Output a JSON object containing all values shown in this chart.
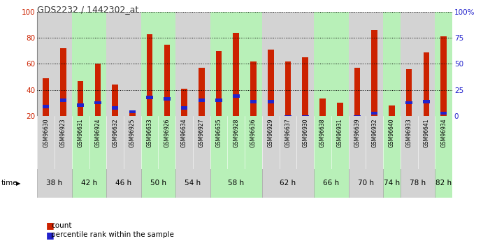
{
  "title": "GDS2232 / 1442302_at",
  "samples": [
    "GSM96630",
    "GSM96923",
    "GSM96631",
    "GSM96924",
    "GSM96632",
    "GSM96925",
    "GSM96633",
    "GSM96926",
    "GSM96634",
    "GSM96927",
    "GSM96635",
    "GSM96928",
    "GSM96636",
    "GSM96929",
    "GSM96637",
    "GSM96930",
    "GSM96638",
    "GSM96931",
    "GSM96639",
    "GSM96932",
    "GSM96640",
    "GSM96933",
    "GSM96641",
    "GSM96934"
  ],
  "count_values": [
    49,
    72,
    47,
    60,
    44,
    23,
    83,
    75,
    41,
    57,
    70,
    84,
    62,
    71,
    62,
    65,
    33,
    30,
    57,
    86,
    28,
    56,
    69,
    81
  ],
  "percentile_values": [
    27,
    32,
    28,
    30,
    26,
    23,
    34,
    33,
    26,
    32,
    32,
    35,
    31,
    31,
    19,
    19,
    18,
    17,
    19,
    22,
    14,
    30,
    31,
    22
  ],
  "time_groups": [
    {
      "label": "38 h",
      "start": 0,
      "end": 2,
      "color": "#d3d3d3"
    },
    {
      "label": "42 h",
      "start": 2,
      "end": 4,
      "color": "#b8f0b8"
    },
    {
      "label": "46 h",
      "start": 4,
      "end": 6,
      "color": "#d3d3d3"
    },
    {
      "label": "50 h",
      "start": 6,
      "end": 8,
      "color": "#b8f0b8"
    },
    {
      "label": "54 h",
      "start": 8,
      "end": 10,
      "color": "#d3d3d3"
    },
    {
      "label": "58 h",
      "start": 10,
      "end": 13,
      "color": "#b8f0b8"
    },
    {
      "label": "62 h",
      "start": 13,
      "end": 16,
      "color": "#d3d3d3"
    },
    {
      "label": "66 h",
      "start": 16,
      "end": 18,
      "color": "#b8f0b8"
    },
    {
      "label": "70 h",
      "start": 18,
      "end": 20,
      "color": "#d3d3d3"
    },
    {
      "label": "74 h",
      "start": 20,
      "end": 21,
      "color": "#b8f0b8"
    },
    {
      "label": "78 h",
      "start": 21,
      "end": 23,
      "color": "#d3d3d3"
    },
    {
      "label": "82 h",
      "start": 23,
      "end": 24,
      "color": "#b8f0b8"
    }
  ],
  "bar_color": "#cc2200",
  "percentile_color": "#2222cc",
  "yticks_left": [
    20,
    40,
    60,
    80,
    100
  ],
  "yticks_right_labels": [
    "0",
    "25",
    "50",
    "75",
    "100%"
  ],
  "yticks_right_vals": [
    20,
    40,
    60,
    80,
    100
  ],
  "ymin": 20,
  "ymax": 100,
  "bar_bg_color": "#e0e0e0",
  "sample_bg_gray": "#d3d3d3",
  "sample_bg_green": "#b8f0b8",
  "bar_width": 0.35,
  "legend_count_label": "count",
  "legend_pct_label": "percentile rank within the sample",
  "time_label": "time"
}
